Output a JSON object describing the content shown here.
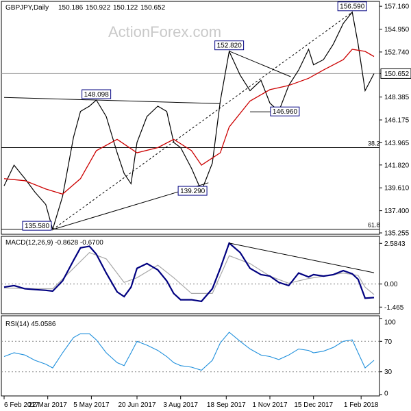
{
  "chart_data": [
    {
      "type": "line",
      "panel": "price",
      "title": "GBPJPY,Daily",
      "ohlc": {
        "open": "150.186",
        "high": "150.922",
        "low": "150.122",
        "close": "150.652"
      },
      "watermark": "ActionForex.com",
      "current_price_label": "150.652",
      "y_ticks": [
        "157.160",
        "154.950",
        "152.740",
        "150.652",
        "148.385",
        "146.175",
        "143.965",
        "141.820",
        "139.610",
        "137.400",
        "135.255"
      ],
      "ylim": [
        135.255,
        157.5
      ],
      "annotations": [
        {
          "text": "135.580",
          "date": "2017-03-27",
          "value": 135.58
        },
        {
          "text": "148.098",
          "date": "2017-05-10",
          "value": 148.098
        },
        {
          "text": "139.290",
          "date": "2017-08-24",
          "value": 139.29
        },
        {
          "text": "152.820",
          "date": "2017-09-21",
          "value": 152.82
        },
        {
          "text": "146.960",
          "date": "2017-11-03",
          "value": 146.96
        },
        {
          "text": "156.590",
          "date": "2018-01-23",
          "value": 156.59
        }
      ],
      "fib_levels": [
        {
          "label": "38.2",
          "value": 143.5
        },
        {
          "label": "61.8",
          "value": 135.62
        }
      ],
      "price_series": {
        "x": [
          "2017-02-06",
          "2017-02-16",
          "2017-02-27",
          "2017-03-09",
          "2017-03-20",
          "2017-03-27",
          "2017-04-06",
          "2017-04-17",
          "2017-04-24",
          "2017-05-03",
          "2017-05-10",
          "2017-05-20",
          "2017-05-31",
          "2017-06-07",
          "2017-06-14",
          "2017-06-20",
          "2017-06-30",
          "2017-07-11",
          "2017-07-20",
          "2017-07-27",
          "2017-08-03",
          "2017-08-14",
          "2017-08-24",
          "2017-09-04",
          "2017-09-12",
          "2017-09-21",
          "2017-10-02",
          "2017-10-12",
          "2017-10-23",
          "2017-11-01",
          "2017-11-10",
          "2017-11-20",
          "2017-11-30",
          "2017-12-10",
          "2017-12-15",
          "2017-12-25",
          "2018-01-04",
          "2018-01-14",
          "2018-01-23",
          "2018-01-29",
          "2018-02-05",
          "2018-02-14"
        ],
        "values": [
          139.8,
          141.8,
          140.5,
          139.2,
          138.0,
          135.6,
          138.8,
          144.5,
          147.0,
          147.5,
          148.1,
          146.5,
          143.0,
          141.0,
          140.0,
          144.0,
          146.5,
          147.5,
          147.0,
          144.0,
          143.5,
          141.5,
          139.3,
          142.0,
          148.0,
          152.8,
          150.5,
          149.0,
          150.0,
          147.8,
          147.0,
          149.5,
          151.0,
          153.0,
          151.5,
          152.0,
          153.5,
          155.5,
          156.6,
          153.5,
          149.0,
          150.65
        ]
      },
      "ma_series": {
        "x": [
          "2017-02-06",
          "2017-02-27",
          "2017-03-20",
          "2017-04-06",
          "2017-04-24",
          "2017-05-10",
          "2017-05-31",
          "2017-06-20",
          "2017-07-11",
          "2017-07-27",
          "2017-08-14",
          "2017-08-24",
          "2017-09-12",
          "2017-09-21",
          "2017-10-12",
          "2017-11-01",
          "2017-11-20",
          "2017-12-10",
          "2017-12-25",
          "2018-01-14",
          "2018-01-23",
          "2018-02-05",
          "2018-02-14"
        ],
        "values": [
          140.5,
          140.3,
          139.5,
          139.0,
          140.5,
          143.2,
          144.3,
          143.0,
          143.5,
          144.3,
          143.2,
          141.8,
          143.0,
          145.5,
          148.0,
          149.1,
          149.5,
          150.2,
          151.0,
          152.0,
          153.0,
          152.8,
          152.3
        ]
      },
      "trendlines": [
        {
          "x": [
            "2017-02-06",
            "2017-09-12"
          ],
          "y": [
            148.35,
            147.75
          ]
        },
        {
          "x": [
            "2017-03-27",
            "2017-08-31"
          ],
          "y": [
            135.58,
            140.1
          ]
        },
        {
          "x": [
            "2017-03-27",
            "2018-01-23"
          ],
          "y": [
            135.58,
            156.59
          ]
        },
        {
          "x": [
            "2017-09-21",
            "2017-11-22"
          ],
          "y": [
            152.82,
            150.35
          ]
        },
        {
          "x": [
            "2017-10-12",
            "2017-11-27"
          ],
          "y": [
            146.96,
            146.96
          ]
        }
      ]
    },
    {
      "type": "line",
      "panel": "macd",
      "title": "MACD(12,26,9) -0.8628 -0.6700",
      "y_ticks": [
        "2.5843",
        "0.00",
        "-1.465"
      ],
      "ylim": [
        -1.8,
        2.9
      ],
      "macd_series": {
        "x": [
          "2017-02-06",
          "2017-02-16",
          "2017-02-27",
          "2017-03-09",
          "2017-03-20",
          "2017-03-27",
          "2017-04-06",
          "2017-04-17",
          "2017-04-24",
          "2017-05-03",
          "2017-05-10",
          "2017-05-20",
          "2017-05-31",
          "2017-06-07",
          "2017-06-14",
          "2017-06-20",
          "2017-06-30",
          "2017-07-11",
          "2017-07-20",
          "2017-07-27",
          "2017-08-03",
          "2017-08-14",
          "2017-08-24",
          "2017-09-04",
          "2017-09-12",
          "2017-09-21",
          "2017-10-02",
          "2017-10-12",
          "2017-10-23",
          "2017-11-01",
          "2017-11-10",
          "2017-11-20",
          "2017-11-30",
          "2017-12-10",
          "2017-12-15",
          "2017-12-25",
          "2018-01-04",
          "2018-01-14",
          "2018-01-23",
          "2018-01-29",
          "2018-02-05",
          "2018-02-14"
        ],
        "values": [
          -0.2,
          -0.1,
          -0.3,
          -0.35,
          -0.4,
          -0.45,
          0.2,
          1.5,
          2.3,
          2.4,
          1.9,
          0.7,
          -0.5,
          -0.8,
          -0.2,
          1.0,
          1.3,
          0.9,
          0.2,
          -0.6,
          -1.0,
          -1.0,
          -1.1,
          -0.3,
          1.0,
          2.6,
          2.0,
          1.0,
          0.6,
          0.5,
          0.1,
          -0.1,
          0.7,
          0.45,
          0.6,
          0.5,
          0.6,
          0.85,
          0.65,
          0.3,
          -0.9,
          -0.86
        ]
      },
      "signal_series": {
        "x": [
          "2017-02-06",
          "2017-03-09",
          "2017-03-27",
          "2017-04-17",
          "2017-05-03",
          "2017-05-20",
          "2017-06-07",
          "2017-06-20",
          "2017-07-11",
          "2017-07-27",
          "2017-08-14",
          "2017-09-04",
          "2017-09-21",
          "2017-10-12",
          "2017-11-01",
          "2017-11-20",
          "2017-12-10",
          "2017-12-25",
          "2018-01-14",
          "2018-01-29",
          "2018-02-05",
          "2018-02-14"
        ],
        "values": [
          -0.25,
          -0.3,
          -0.3,
          1.0,
          2.0,
          1.6,
          0.1,
          0.4,
          1.2,
          0.4,
          -0.6,
          -0.6,
          1.8,
          1.3,
          0.5,
          0.05,
          0.35,
          0.5,
          0.7,
          0.55,
          -0.2,
          -0.67
        ]
      },
      "trendlines": [
        {
          "x": [
            "2017-09-21",
            "2018-02-14"
          ],
          "y": [
            2.6,
            0.72
          ]
        }
      ]
    },
    {
      "type": "line",
      "panel": "rsi",
      "title": "RSI(14) 45.0586",
      "y_ticks": [
        "100",
        "70",
        "30",
        "0"
      ],
      "ylim": [
        0,
        100
      ],
      "levels": [
        70,
        30
      ],
      "x_ticks": [
        "6 Feb 2017",
        "22 Mar 2017",
        "5 May 2017",
        "20 Jun 2017",
        "3 Aug 2017",
        "18 Sep 2017",
        "1 Nov 2017",
        "15 Dec 2017",
        "1 Feb 2018"
      ],
      "series": {
        "x": [
          "2017-02-06",
          "2017-02-16",
          "2017-02-27",
          "2017-03-09",
          "2017-03-20",
          "2017-03-27",
          "2017-04-06",
          "2017-04-17",
          "2017-04-24",
          "2017-05-03",
          "2017-05-10",
          "2017-05-20",
          "2017-05-31",
          "2017-06-07",
          "2017-06-14",
          "2017-06-20",
          "2017-06-30",
          "2017-07-11",
          "2017-07-20",
          "2017-07-27",
          "2017-08-03",
          "2017-08-14",
          "2017-08-24",
          "2017-09-04",
          "2017-09-12",
          "2017-09-21",
          "2017-10-02",
          "2017-10-12",
          "2017-10-23",
          "2017-11-01",
          "2017-11-10",
          "2017-11-20",
          "2017-11-30",
          "2017-12-10",
          "2017-12-15",
          "2017-12-25",
          "2018-01-04",
          "2018-01-14",
          "2018-01-23",
          "2018-01-29",
          "2018-02-05",
          "2018-02-14"
        ],
        "values": [
          50,
          55,
          52,
          45,
          40,
          35,
          55,
          75,
          80,
          80,
          72,
          55,
          42,
          38,
          55,
          70,
          65,
          58,
          50,
          42,
          38,
          36,
          32,
          45,
          68,
          82,
          70,
          60,
          52,
          50,
          46,
          52,
          60,
          58,
          55,
          57,
          62,
          70,
          72,
          55,
          35,
          45
        ]
      }
    }
  ]
}
